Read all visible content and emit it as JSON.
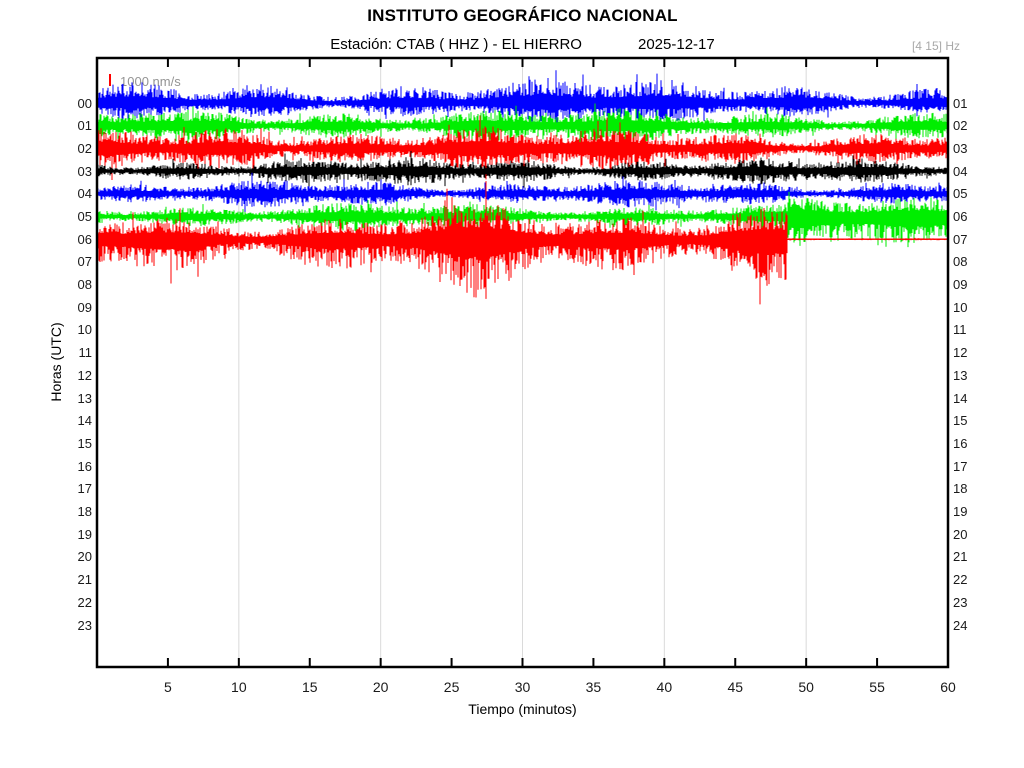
{
  "header": {
    "title": "INSTITUTO GEOGRÁFICO NACIONAL",
    "subtitle_station": "Estación:  CTAB ( HHZ ) - EL HIERRO",
    "date": "2025-12-17",
    "filter_band": "[4 15] Hz"
  },
  "chart_data": {
    "type": "line",
    "variant": "helicorder-seismogram",
    "title": "INSTITUTO GEOGRÁFICO NACIONAL",
    "subtitle": "Estación:  CTAB ( HHZ ) - EL HIERRO    2025-12-17",
    "station": "CTAB",
    "channel": "HHZ",
    "location": "EL HIERRO",
    "date": "2025-12-17",
    "filter_band_hz": "[4 15] Hz",
    "amplitude_scale": "1000 nm/s",
    "xlabel": "Tiempo (minutos)",
    "ylabel": "Horas (UTC)",
    "xlim": [
      0,
      60
    ],
    "x_ticks": [
      5,
      10,
      15,
      20,
      25,
      30,
      35,
      40,
      45,
      50,
      55,
      60
    ],
    "minor_tick_minutes": [
      5,
      10,
      15,
      20,
      25,
      30,
      35,
      40,
      45,
      50,
      55
    ],
    "gridline_minutes": [
      10,
      20,
      30,
      40,
      50
    ],
    "grid_on": true,
    "left_hour_labels": [
      "00",
      "01",
      "02",
      "03",
      "04",
      "05",
      "06",
      "07",
      "08",
      "09",
      "10",
      "11",
      "12",
      "13",
      "14",
      "15",
      "16",
      "17",
      "18",
      "19",
      "20",
      "21",
      "22",
      "23"
    ],
    "right_hour_labels": [
      "01",
      "02",
      "03",
      "04",
      "05",
      "06",
      "07",
      "08",
      "09",
      "10",
      "11",
      "12",
      "13",
      "14",
      "15",
      "16",
      "17",
      "18",
      "19",
      "20",
      "21",
      "22",
      "23",
      "24"
    ],
    "trace_color_cycle": [
      "#0000ff",
      "#00ee00",
      "#ff0000",
      "#000000"
    ],
    "empty_hours": [
      "07",
      "08",
      "09",
      "10",
      "11",
      "12",
      "13",
      "14",
      "15",
      "16",
      "17",
      "18",
      "19",
      "20",
      "21",
      "22",
      "23"
    ],
    "traces": [
      {
        "row": 0,
        "hour_start": "00",
        "hour_end": "01",
        "color": "#0000ff",
        "up": 1.15,
        "dn": 0.92,
        "bursts": [
          {
            "c": 11,
            "w": 2.5,
            "g": 1.25
          },
          {
            "c": 34,
            "w": 3,
            "g": 1.2
          }
        ],
        "segments": [
          {
            "from": 0,
            "to": 60,
            "amp": 21
          }
        ]
      },
      {
        "row": 1,
        "hour_start": "01",
        "hour_end": "02",
        "color": "#00ee00",
        "up": 1.0,
        "dn": 1.0,
        "bursts": [
          {
            "c": 20,
            "w": 4,
            "g": 1.15
          }
        ],
        "segments": [
          {
            "from": 0,
            "to": 60,
            "amp": 18
          }
        ]
      },
      {
        "row": 2,
        "hour_start": "02",
        "hour_end": "03",
        "color": "#ff0000",
        "up": 1.05,
        "dn": 1.1,
        "bursts": [
          {
            "c": 12,
            "w": 3,
            "g": 1.3
          },
          {
            "c": 24,
            "w": 3,
            "g": 1.3
          }
        ],
        "segments": [
          {
            "from": 0,
            "to": 60,
            "amp": 21
          }
        ]
      },
      {
        "row": 3,
        "hour_start": "03",
        "hour_end": "04",
        "color": "#000000",
        "up": 1.0,
        "dn": 1.0,
        "bursts": [
          {
            "c": 30,
            "w": 5,
            "g": 1.15
          }
        ],
        "segments": [
          {
            "from": 0,
            "to": 60,
            "amp": 14
          }
        ]
      },
      {
        "row": 4,
        "hour_start": "04",
        "hour_end": "05",
        "color": "#0000ff",
        "up": 1.0,
        "dn": 0.95,
        "bursts": [],
        "segments": [
          {
            "from": 0,
            "to": 60,
            "amp": 15
          }
        ]
      },
      {
        "row": 5,
        "hour_start": "05",
        "hour_end": "06",
        "color": "#00ee00",
        "up": 1.0,
        "dn": 1.0,
        "bursts": [],
        "segments": [
          {
            "from": 0,
            "to": 48.7,
            "amp": 15,
            "up": 1.0,
            "dn": 1.05
          },
          {
            "from": 48.7,
            "to": 60,
            "amp": 26,
            "up": 0.9,
            "dn": 1.5
          }
        ]
      },
      {
        "row": 6,
        "hour_start": "06",
        "hour_end": "07",
        "color": "#ff0000",
        "up": 0.85,
        "dn": 1.25,
        "bursts": [
          {
            "c": 0,
            "w": 10,
            "g": 0.78
          },
          {
            "c": 27,
            "w": 2.5,
            "g": 1.25
          },
          {
            "c": 44,
            "w": 3,
            "g": 1.3
          }
        ],
        "segments": [
          {
            "from": 0,
            "to": 48.7,
            "amp": 38
          },
          {
            "from": 48.7,
            "to": 60,
            "amp": 1.2,
            "flat_line": true
          }
        ]
      }
    ]
  }
}
